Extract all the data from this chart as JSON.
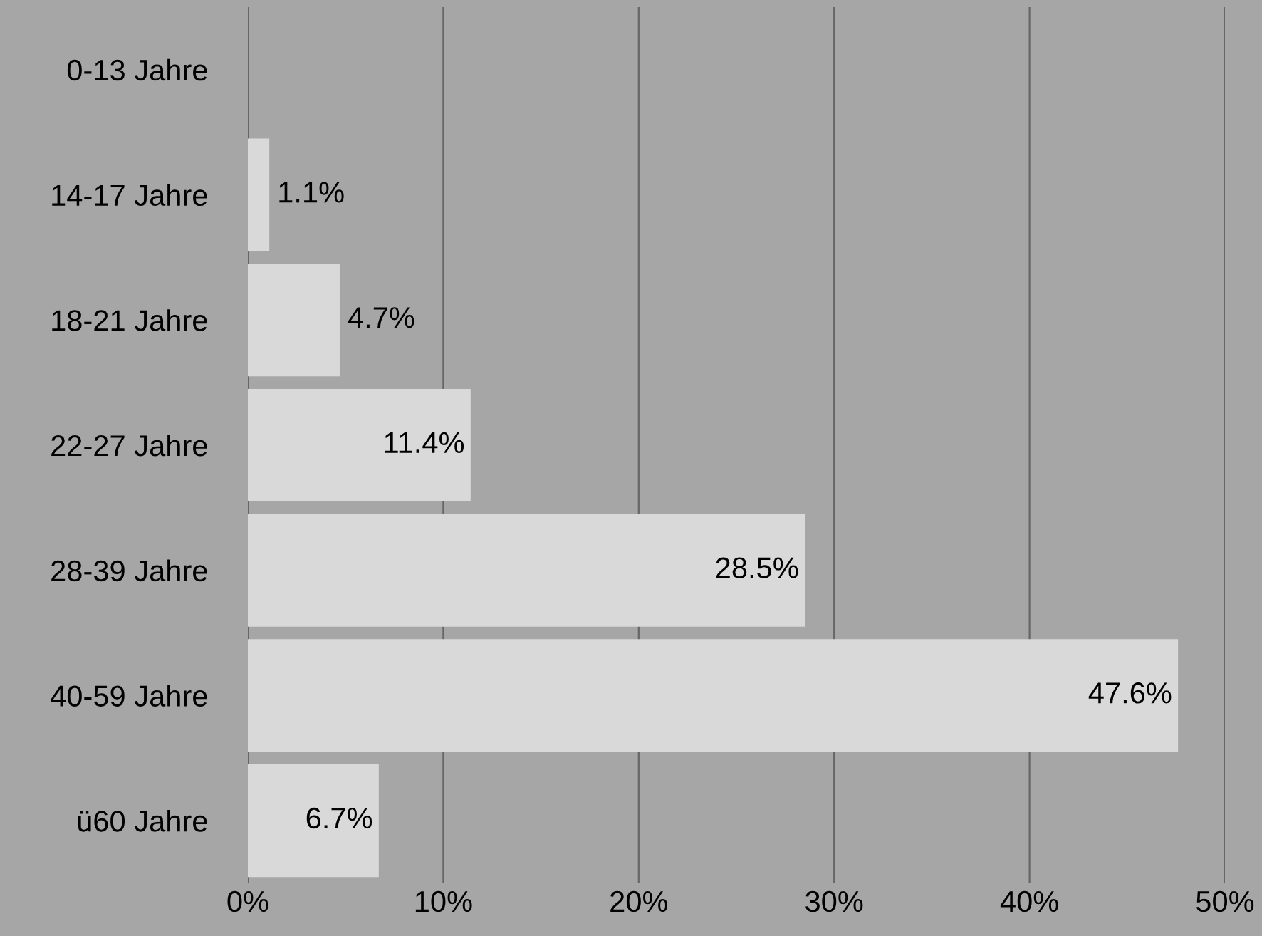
{
  "chart_data": {
    "type": "bar",
    "orientation": "horizontal",
    "categories": [
      "0-13 Jahre",
      "14-17 Jahre",
      "18-21 Jahre",
      "22-27 Jahre",
      "28-39 Jahre",
      "40-59 Jahre",
      "ü60 Jahre"
    ],
    "values": [
      0,
      1.1,
      4.7,
      11.4,
      28.5,
      47.6,
      6.7
    ],
    "value_labels": [
      null,
      "1.1%",
      "4.7%",
      "11.4%",
      "28.5%",
      "47.6%",
      "6.7%"
    ],
    "color": "#d9d9d9",
    "xlim": [
      0,
      50
    ],
    "xticks": [
      {
        "value": 0,
        "label": "0%"
      },
      {
        "value": 10,
        "label": "10%"
      },
      {
        "value": 20,
        "label": "20%"
      },
      {
        "value": 30,
        "label": "30%"
      },
      {
        "value": 40,
        "label": "40%"
      },
      {
        "value": 50,
        "label": "50%"
      }
    ],
    "grid": "x",
    "legend": false
  }
}
